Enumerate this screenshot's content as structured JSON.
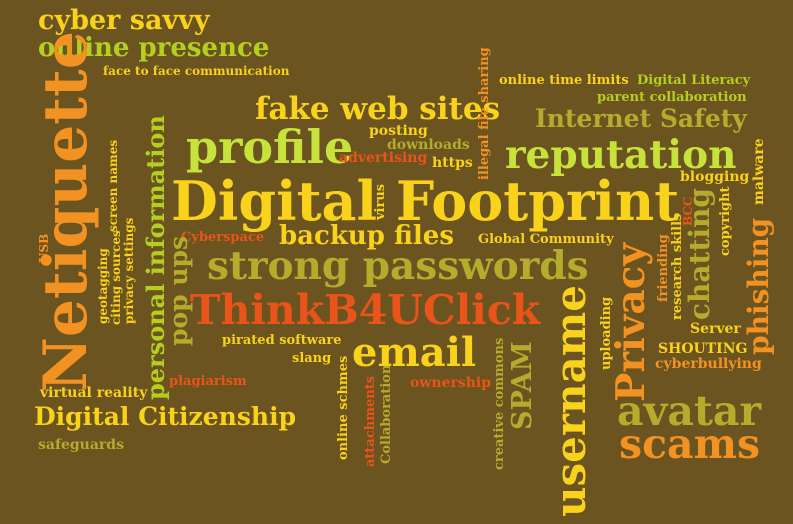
{
  "colors": {
    "background": "#6b5420",
    "yellow": "#f9d21b",
    "lime": "#b4cf1e",
    "green": "#c7e23a",
    "olive": "#b3ac2c",
    "orange": "#f29222",
    "red": "#e9541a"
  },
  "words": [
    {
      "text": "cyber savvy"
    },
    {
      "text": "online presence"
    },
    {
      "text": "face to face communication"
    },
    {
      "text": "Netiquette"
    },
    {
      "text": "USB"
    },
    {
      "text": "geotagging"
    },
    {
      "text": "citing sources"
    },
    {
      "text": "privacy settings"
    },
    {
      "text": "screen names"
    },
    {
      "text": "personal information"
    },
    {
      "text": "pop ups"
    },
    {
      "text": "fake web sites"
    },
    {
      "text": "profile"
    },
    {
      "text": "posting"
    },
    {
      "text": "downloads"
    },
    {
      "text": "advertising"
    },
    {
      "text": "https"
    },
    {
      "text": "illegal file sharing"
    },
    {
      "text": "online time limits"
    },
    {
      "text": "Digital Literacy"
    },
    {
      "text": "parent collaboration"
    },
    {
      "text": "Internet Safety"
    },
    {
      "text": "reputation"
    },
    {
      "text": "malware"
    },
    {
      "text": "blogging"
    },
    {
      "text": "Digital Footprint"
    },
    {
      "text": "virus"
    },
    {
      "text": "BCC"
    },
    {
      "text": "copyright"
    },
    {
      "text": "Cyberspace"
    },
    {
      "text": "backup files"
    },
    {
      "text": "Global Community"
    },
    {
      "text": "strong passwords"
    },
    {
      "text": "friending"
    },
    {
      "text": "research skills"
    },
    {
      "text": "chatting"
    },
    {
      "text": "phishing"
    },
    {
      "text": "ThinkB4UClick"
    },
    {
      "text": "Privacy"
    },
    {
      "text": "Server"
    },
    {
      "text": "pirated software"
    },
    {
      "text": "email"
    },
    {
      "text": "slang"
    },
    {
      "text": "creative commons"
    },
    {
      "text": "SPAM"
    },
    {
      "text": "username"
    },
    {
      "text": "uploading"
    },
    {
      "text": "SHOUTING"
    },
    {
      "text": "cyberbullying"
    },
    {
      "text": "virtual reality"
    },
    {
      "text": "plagiarism"
    },
    {
      "text": "ownership"
    },
    {
      "text": "online schmes"
    },
    {
      "text": "attachments"
    },
    {
      "text": "Collaboration"
    },
    {
      "text": "Digital Citizenship"
    },
    {
      "text": "avatar"
    },
    {
      "text": "scams"
    },
    {
      "text": "safeguards"
    }
  ]
}
